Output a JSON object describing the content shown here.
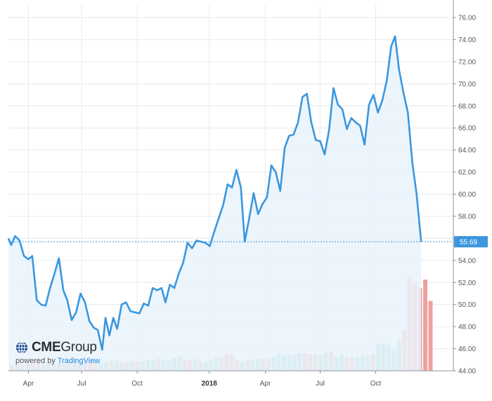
{
  "branding": {
    "logo_bold": "CME",
    "logo_rest": "Group",
    "powered_prefix": "powered by",
    "powered_brand": "TradingView"
  },
  "colors": {
    "line": "#3a97df",
    "area": "#e9f3fc",
    "last_price_bg": "#3a97df",
    "volume_up": "#8ccfc6",
    "volume_down": "#ef9f9c"
  },
  "chart_data": {
    "type": "line",
    "title": "",
    "xlabel": "",
    "ylabel": "",
    "ylim": [
      44,
      76.7
    ],
    "y_ticks": [
      "76.00",
      "74.00",
      "72.00",
      "70.00",
      "68.00",
      "66.00",
      "64.00",
      "62.00",
      "60.00",
      "58.00",
      "56.00",
      "54.00",
      "52.00",
      "50.00",
      "48.00",
      "46.00",
      "44.00"
    ],
    "x_ticks": [
      {
        "label": "Apr",
        "x": 3.6
      },
      {
        "label": "Jul",
        "x": 13.2
      },
      {
        "label": "Oct",
        "x": 23.2
      },
      {
        "label": "2018",
        "x": 36.2,
        "bold": true
      },
      {
        "label": "Apr",
        "x": 46.3
      },
      {
        "label": "Jul",
        "x": 56.2
      },
      {
        "label": "Oct",
        "x": 66.2
      }
    ],
    "last_price": 55.69,
    "x_end": 72.0,
    "grid": true,
    "series": [
      {
        "values": [
          [
            0,
            56.0
          ],
          [
            0.5,
            55.4
          ],
          [
            1.2,
            56.2
          ],
          [
            2,
            55.8
          ],
          [
            2.8,
            54.4
          ],
          [
            3.6,
            54.1
          ],
          [
            4.3,
            54.4
          ],
          [
            5.1,
            50.4
          ],
          [
            5.9,
            50.0
          ],
          [
            6.7,
            49.9
          ],
          [
            7.5,
            51.5
          ],
          [
            8.3,
            52.8
          ],
          [
            9.1,
            54.2
          ],
          [
            9.9,
            51.3
          ],
          [
            10.6,
            50.4
          ],
          [
            11.4,
            48.6
          ],
          [
            12.2,
            49.3
          ],
          [
            13,
            51.0
          ],
          [
            13.8,
            50.2
          ],
          [
            14.6,
            48.5
          ],
          [
            15.4,
            47.9
          ],
          [
            16.1,
            47.7
          ],
          [
            16.9,
            45.9
          ],
          [
            17.5,
            48.8
          ],
          [
            18.2,
            47.2
          ],
          [
            18.9,
            48.8
          ],
          [
            19.6,
            47.8
          ],
          [
            20.4,
            50.0
          ],
          [
            21.2,
            50.2
          ],
          [
            22,
            49.4
          ],
          [
            22.8,
            49.3
          ],
          [
            23.6,
            49.2
          ],
          [
            24.4,
            50.1
          ],
          [
            25.2,
            49.9
          ],
          [
            26,
            51.5
          ],
          [
            26.8,
            51.3
          ],
          [
            27.6,
            51.5
          ],
          [
            28.3,
            50.2
          ],
          [
            29.1,
            51.8
          ],
          [
            29.9,
            51.5
          ],
          [
            30.7,
            52.8
          ],
          [
            31.5,
            53.8
          ],
          [
            32.3,
            55.6
          ],
          [
            33.1,
            55.1
          ],
          [
            33.9,
            55.8
          ],
          [
            34.7,
            55.7
          ],
          [
            35.5,
            55.6
          ],
          [
            36.3,
            55.3
          ],
          [
            37.1,
            56.6
          ],
          [
            37.9,
            57.8
          ],
          [
            38.7,
            59.0
          ],
          [
            39.5,
            60.9
          ],
          [
            40.3,
            60.6
          ],
          [
            41.1,
            62.2
          ],
          [
            41.9,
            60.6
          ],
          [
            42.6,
            55.7
          ],
          [
            43.4,
            57.8
          ],
          [
            44.2,
            60.1
          ],
          [
            45,
            58.2
          ],
          [
            45.8,
            59.1
          ],
          [
            46.6,
            59.7
          ],
          [
            47.4,
            62.6
          ],
          [
            48.2,
            62.0
          ],
          [
            49,
            60.3
          ],
          [
            49.8,
            64.2
          ],
          [
            50.6,
            65.3
          ],
          [
            51.4,
            65.4
          ],
          [
            52.2,
            66.5
          ],
          [
            53,
            68.8
          ],
          [
            53.8,
            69.1
          ],
          [
            54.6,
            66.5
          ],
          [
            55.4,
            64.9
          ],
          [
            56.2,
            64.8
          ],
          [
            57,
            63.6
          ],
          [
            57.8,
            65.8
          ],
          [
            58.6,
            69.6
          ],
          [
            59.4,
            68.1
          ],
          [
            60.2,
            67.7
          ],
          [
            61,
            65.9
          ],
          [
            61.8,
            66.9
          ],
          [
            62.6,
            66.5
          ],
          [
            63.4,
            66.2
          ],
          [
            64.2,
            64.5
          ],
          [
            65,
            68.1
          ],
          [
            65.8,
            69.0
          ],
          [
            66.6,
            67.4
          ],
          [
            67.4,
            68.5
          ],
          [
            68.2,
            70.3
          ],
          [
            69,
            73.4
          ],
          [
            69.7,
            74.3
          ],
          [
            70.4,
            71.3
          ],
          [
            71.2,
            69.2
          ],
          [
            72,
            67.4
          ],
          [
            72.8,
            62.9
          ],
          [
            73.6,
            59.9
          ],
          [
            74.4,
            55.69
          ]
        ]
      }
    ],
    "volume": [
      {
        "x": 0,
        "v": 0.5,
        "d": "down"
      },
      {
        "x": 1,
        "v": 0.55,
        "d": "down"
      },
      {
        "x": 2,
        "v": 0.5,
        "d": "up"
      },
      {
        "x": 3,
        "v": 0.6,
        "d": "down"
      },
      {
        "x": 4,
        "v": 0.6,
        "d": "down"
      },
      {
        "x": 5,
        "v": 0.7,
        "d": "down"
      },
      {
        "x": 6,
        "v": 0.55,
        "d": "up"
      },
      {
        "x": 7,
        "v": 0.6,
        "d": "down"
      },
      {
        "x": 8,
        "v": 0.6,
        "d": "up"
      },
      {
        "x": 9,
        "v": 0.65,
        "d": "down"
      },
      {
        "x": 10,
        "v": 0.6,
        "d": "up"
      },
      {
        "x": 11,
        "v": 0.7,
        "d": "down"
      },
      {
        "x": 12,
        "v": 0.65,
        "d": "up"
      },
      {
        "x": 13,
        "v": 0.7,
        "d": "up"
      },
      {
        "x": 14,
        "v": 0.75,
        "d": "down"
      },
      {
        "x": 15,
        "v": 0.7,
        "d": "down"
      },
      {
        "x": 16,
        "v": 0.8,
        "d": "down"
      },
      {
        "x": 17,
        "v": 0.75,
        "d": "up"
      },
      {
        "x": 18,
        "v": 0.8,
        "d": "up"
      },
      {
        "x": 19,
        "v": 0.9,
        "d": "down"
      },
      {
        "x": 20,
        "v": 0.85,
        "d": "up"
      },
      {
        "x": 21,
        "v": 0.75,
        "d": "down"
      },
      {
        "x": 22,
        "v": 0.7,
        "d": "down"
      },
      {
        "x": 23,
        "v": 0.85,
        "d": "up"
      },
      {
        "x": 24,
        "v": 0.8,
        "d": "down"
      },
      {
        "x": 25,
        "v": 0.75,
        "d": "up"
      },
      {
        "x": 26,
        "v": 0.9,
        "d": "up"
      },
      {
        "x": 27,
        "v": 0.85,
        "d": "up"
      },
      {
        "x": 28,
        "v": 1.0,
        "d": "down"
      },
      {
        "x": 29,
        "v": 0.95,
        "d": "up"
      },
      {
        "x": 30,
        "v": 0.85,
        "d": "up"
      },
      {
        "x": 31,
        "v": 1.1,
        "d": "up"
      },
      {
        "x": 32,
        "v": 1.2,
        "d": "up"
      },
      {
        "x": 33,
        "v": 1.0,
        "d": "down"
      },
      {
        "x": 34,
        "v": 0.9,
        "d": "down"
      },
      {
        "x": 35,
        "v": 1.0,
        "d": "up"
      },
      {
        "x": 36,
        "v": 0.8,
        "d": "down"
      },
      {
        "x": 37,
        "v": 0.7,
        "d": "up"
      },
      {
        "x": 38,
        "v": 0.85,
        "d": "up"
      },
      {
        "x": 39,
        "v": 1.1,
        "d": "up"
      },
      {
        "x": 40,
        "v": 1.2,
        "d": "down"
      },
      {
        "x": 41,
        "v": 1.4,
        "d": "down"
      },
      {
        "x": 42,
        "v": 1.4,
        "d": "down"
      },
      {
        "x": 43,
        "v": 0.9,
        "d": "down"
      },
      {
        "x": 44,
        "v": 0.8,
        "d": "up"
      },
      {
        "x": 45,
        "v": 0.9,
        "d": "down"
      },
      {
        "x": 46,
        "v": 0.85,
        "d": "up"
      },
      {
        "x": 47,
        "v": 1.0,
        "d": "up"
      },
      {
        "x": 48,
        "v": 1.1,
        "d": "down"
      },
      {
        "x": 49,
        "v": 1.0,
        "d": "down"
      },
      {
        "x": 50,
        "v": 1.2,
        "d": "up"
      },
      {
        "x": 51,
        "v": 1.5,
        "d": "up"
      },
      {
        "x": 52,
        "v": 1.3,
        "d": "up"
      },
      {
        "x": 53,
        "v": 1.3,
        "d": "up"
      },
      {
        "x": 54,
        "v": 1.4,
        "d": "up"
      },
      {
        "x": 55,
        "v": 1.5,
        "d": "up"
      },
      {
        "x": 56,
        "v": 1.5,
        "d": "down"
      },
      {
        "x": 57,
        "v": 1.4,
        "d": "down"
      },
      {
        "x": 58,
        "v": 1.4,
        "d": "down"
      },
      {
        "x": 59,
        "v": 1.3,
        "d": "up"
      },
      {
        "x": 60,
        "v": 1.5,
        "d": "up"
      },
      {
        "x": 61,
        "v": 1.6,
        "d": "down"
      },
      {
        "x": 62,
        "v": 1.2,
        "d": "up"
      },
      {
        "x": 63,
        "v": 1.4,
        "d": "up"
      },
      {
        "x": 64,
        "v": 1.2,
        "d": "down"
      },
      {
        "x": 65,
        "v": 1.1,
        "d": "down"
      },
      {
        "x": 66,
        "v": 1.2,
        "d": "up"
      },
      {
        "x": 67,
        "v": 1.3,
        "d": "up"
      },
      {
        "x": 68,
        "v": 1.2,
        "d": "up"
      },
      {
        "x": 69,
        "v": 1.4,
        "d": "down"
      },
      {
        "x": 70,
        "v": 2.3,
        "d": "up"
      },
      {
        "x": 71,
        "v": 2.3,
        "d": "up"
      },
      {
        "x": 72,
        "v": 2.2,
        "d": "up"
      },
      {
        "x": 73,
        "v": 1.8,
        "d": "up"
      },
      {
        "x": 74,
        "v": 2.6,
        "d": "up"
      },
      {
        "x": 75,
        "v": 3.4,
        "d": "down"
      },
      {
        "x": 76,
        "v": 7.9,
        "d": "down"
      },
      {
        "x": 77,
        "v": 7.4,
        "d": "down"
      },
      {
        "x": 78,
        "v": 7.0,
        "d": "down"
      },
      {
        "x": 79,
        "v": 7.7,
        "d": "down"
      },
      {
        "x": 80,
        "v": 5.9,
        "d": "down"
      }
    ]
  }
}
